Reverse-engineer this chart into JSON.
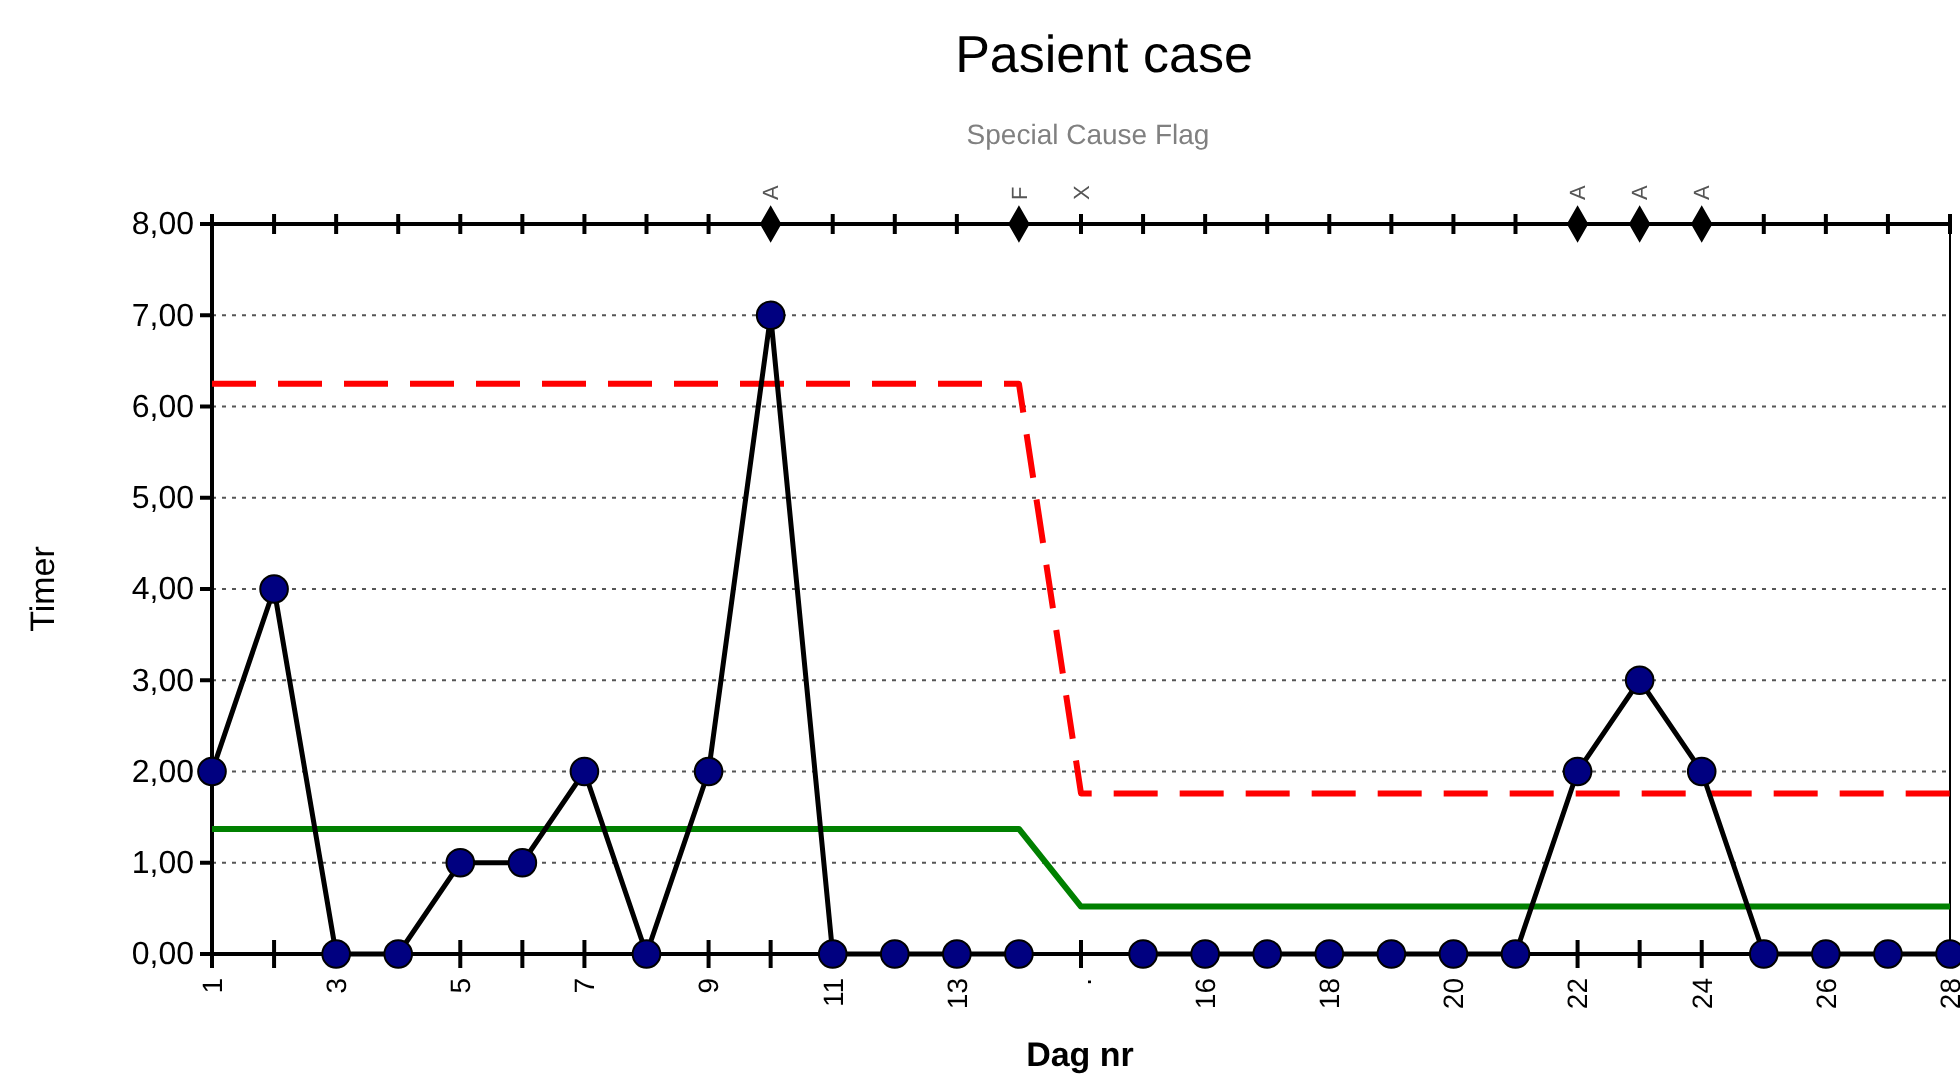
{
  "chart_data": {
    "type": "line",
    "title": "Pasient case",
    "subtitle": "Special Cause Flag",
    "xlabel": "Dag nr",
    "ylabel": "Timer",
    "categories": [
      "1",
      null,
      "3",
      null,
      "5",
      null,
      "7",
      null,
      "9",
      null,
      "11",
      null,
      "13",
      null,
      ".",
      null,
      "16",
      null,
      "18",
      null,
      "20",
      null,
      "22",
      null,
      "24",
      null,
      "26",
      null,
      "28"
    ],
    "series": [
      {
        "color": "#000080",
        "marker": "circle",
        "line_style": "solid",
        "values": [
          2,
          4,
          0,
          0,
          1,
          1,
          2,
          0,
          2,
          7,
          0,
          0,
          0,
          0,
          null,
          0,
          0,
          0,
          0,
          0,
          0,
          0,
          2,
          3,
          2,
          0,
          0,
          0,
          0
        ]
      },
      {
        "color": "#ff0000",
        "marker": "none",
        "line_style": "dashed",
        "values": [
          6.25,
          6.25,
          6.25,
          6.25,
          6.25,
          6.25,
          6.25,
          6.25,
          6.25,
          6.25,
          6.25,
          6.25,
          6.25,
          6.25,
          1.76,
          1.76,
          1.76,
          1.76,
          1.76,
          1.76,
          1.76,
          1.76,
          1.76,
          1.76,
          1.76,
          1.76,
          1.76,
          1.76,
          1.76
        ]
      },
      {
        "color": "#008000",
        "marker": "none",
        "line_style": "solid",
        "values": [
          1.37,
          1.37,
          1.37,
          1.37,
          1.37,
          1.37,
          1.37,
          1.37,
          1.37,
          1.37,
          1.37,
          1.37,
          1.37,
          1.37,
          0.52,
          0.52,
          0.52,
          0.52,
          0.52,
          0.52,
          0.52,
          0.52,
          0.52,
          0.52,
          0.52,
          0.52,
          0.52,
          0.52,
          0.52
        ]
      },
      {
        "type": "scatter",
        "color": "#000000",
        "marker": "diamond",
        "values": [
          null,
          null,
          null,
          null,
          null,
          null,
          null,
          null,
          null,
          8,
          null,
          null,
          null,
          8,
          null,
          null,
          null,
          null,
          null,
          null,
          null,
          null,
          8,
          8,
          8,
          null,
          null,
          null,
          null
        ],
        "value_labels": [
          null,
          null,
          null,
          null,
          null,
          null,
          null,
          null,
          null,
          "A",
          null,
          null,
          null,
          "F",
          null,
          null,
          null,
          null,
          null,
          null,
          null,
          null,
          "A",
          "A",
          "A",
          null,
          null,
          null,
          null
        ]
      }
    ],
    "annotations": [
      {
        "text": "X",
        "x": "."
      }
    ],
    "ylim": [
      0,
      8
    ],
    "yticks": [
      {
        "value": 0,
        "label": "0,00"
      },
      {
        "value": 1,
        "label": "1,00"
      },
      {
        "value": 2,
        "label": "2,00"
      },
      {
        "value": 3,
        "label": "3,00"
      },
      {
        "value": 4,
        "label": "4,00"
      },
      {
        "value": 5,
        "label": "5,00"
      },
      {
        "value": 6,
        "label": "6,00"
      },
      {
        "value": 7,
        "label": "7,00"
      },
      {
        "value": 8,
        "label": "8,00"
      }
    ],
    "grid": "y"
  }
}
